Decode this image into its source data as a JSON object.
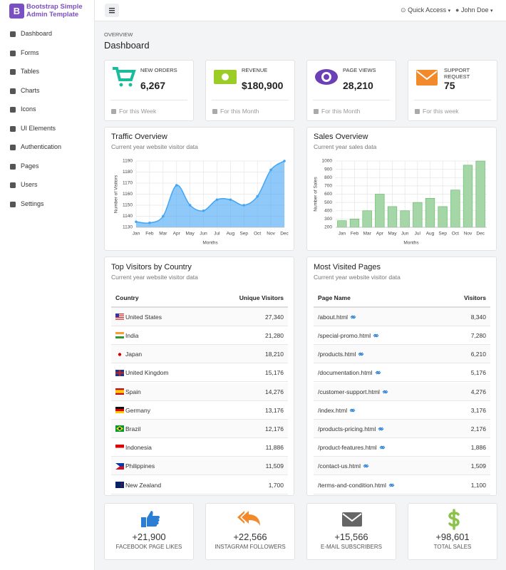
{
  "brand": {
    "letter": "B",
    "name": "Bootstrap Simple Admin Template"
  },
  "sidebar": [
    "Dashboard",
    "Forms",
    "Tables",
    "Charts",
    "Icons",
    "UI Elements",
    "Authentication",
    "Pages",
    "Users",
    "Settings"
  ],
  "topbar": {
    "quick_access": "Quick Access",
    "user": "John Doe"
  },
  "header": {
    "overline": "OVERVIEW",
    "title": "Dashboard"
  },
  "stats": [
    {
      "label": "NEW ORDERS",
      "value": "6,267",
      "footer": "For this Week"
    },
    {
      "label": "REVENUE",
      "value": "$180,900",
      "footer": "For this Month"
    },
    {
      "label": "PAGE VIEWS",
      "value": "28,210",
      "footer": "For this Month"
    },
    {
      "label": "SUPPORT REQUEST",
      "value": "75",
      "footer": "For this week"
    }
  ],
  "chart_data": [
    {
      "type": "line",
      "title": "Traffic Overview",
      "subtitle": "Current year website visitor data",
      "categories": [
        "Jan",
        "Feb",
        "Mar",
        "Apr",
        "May",
        "Jun",
        "Jul",
        "Aug",
        "Sep",
        "Oct",
        "Nov",
        "Dec"
      ],
      "values": [
        1135,
        1134,
        1140,
        1168,
        1150,
        1145,
        1155,
        1155,
        1150,
        1158,
        1182,
        1190
      ],
      "color": "#42a5f5",
      "xlabel": "Months",
      "ylabel": "Number of Visitors",
      "ylim": [
        1130,
        1190
      ],
      "yticks": [
        1130,
        1140,
        1150,
        1160,
        1170,
        1180,
        1190
      ],
      "grid": true
    },
    {
      "type": "bar",
      "title": "Sales Overview",
      "subtitle": "Current year sales data",
      "categories": [
        "Jan",
        "Feb",
        "Mar",
        "Apr",
        "May",
        "Jun",
        "Jul",
        "Aug",
        "Sep",
        "Oct",
        "Nov",
        "Dec"
      ],
      "values": [
        280,
        300,
        400,
        600,
        450,
        400,
        500,
        550,
        450,
        650,
        950,
        1000
      ],
      "color": "#a5d6a7",
      "xlabel": "Months",
      "ylabel": "Number of Sales",
      "ylim": [
        200,
        1000
      ],
      "yticks": [
        200,
        300,
        400,
        500,
        600,
        700,
        800,
        900,
        1000
      ],
      "grid": true
    }
  ],
  "tables": [
    {
      "title": "Top Visitors by Country",
      "subtitle": "Current year website visitor data",
      "columns": [
        "Country",
        "Unique Visitors"
      ],
      "rows": [
        [
          "United States",
          "27,340"
        ],
        [
          "India",
          "21,280"
        ],
        [
          "Japan",
          "18,210"
        ],
        [
          "United Kingdom",
          "15,176"
        ],
        [
          "Spain",
          "14,276"
        ],
        [
          "Germany",
          "13,176"
        ],
        [
          "Brazil",
          "12,176"
        ],
        [
          "Indonesia",
          "11,886"
        ],
        [
          "Philippines",
          "11,509"
        ],
        [
          "New Zealand",
          "1,700"
        ]
      ]
    },
    {
      "title": "Most Visited Pages",
      "subtitle": "Current year website visitor data",
      "columns": [
        "Page Name",
        "Visitors"
      ],
      "rows": [
        [
          "/about.html",
          "8,340"
        ],
        [
          "/special-promo.html",
          "7,280"
        ],
        [
          "/products.html",
          "6,210"
        ],
        [
          "/documentation.html",
          "5,176"
        ],
        [
          "/customer-support.html",
          "4,276"
        ],
        [
          "/index.html",
          "3,176"
        ],
        [
          "/products-pricing.html",
          "2,176"
        ],
        [
          "/product-features.html",
          "1,886"
        ],
        [
          "/contact-us.html",
          "1,509"
        ],
        [
          "/terms-and-condition.html",
          "1,100"
        ]
      ]
    }
  ],
  "social": [
    {
      "value": "+21,900",
      "label": "FACEBOOK PAGE LIKES"
    },
    {
      "value": "+22,566",
      "label": "INSTAGRAM FOLLOWERS"
    },
    {
      "value": "+15,566",
      "label": "E-MAIL SUBSCRIBERS"
    },
    {
      "value": "+98,601",
      "label": "TOTAL SALES"
    }
  ]
}
